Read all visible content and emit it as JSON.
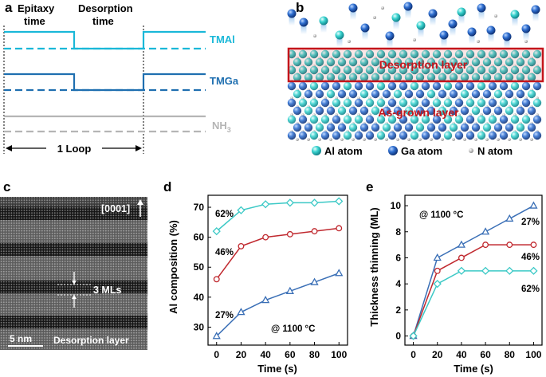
{
  "panel_letters": {
    "a": "a",
    "b": "b",
    "c": "c",
    "d": "d",
    "e": "e"
  },
  "colors": {
    "tmal": "#1ab8d8",
    "tmga": "#1f6fb0",
    "nh3": "#b5b5b5",
    "cyan": "#3cc9c6",
    "red": "#c0282e",
    "blue": "#3a6fb6",
    "highlight": "#c4161c"
  },
  "panel_a": {
    "epitaxy_line1": "Epitaxy",
    "epitaxy_line2": "time",
    "desorption_line1": "Desorption",
    "desorption_line2": "time",
    "tmal": "TMAl",
    "tmga": "TMGa",
    "nh3_main": "NH",
    "nh3_sub": "3",
    "loop": "1 Loop"
  },
  "panel_b": {
    "desorption_layer": "Desorption layer",
    "as_grown_layer": "As-grown layer",
    "legend": [
      {
        "label": "Al atom",
        "icon": "cyan-sphere-icon"
      },
      {
        "label": "Ga atom",
        "icon": "blue-sphere-icon"
      },
      {
        "label": "N atom",
        "icon": "gray-dot-icon"
      }
    ]
  },
  "panel_c": {
    "direction": "[0001]",
    "ml": "3 MLs",
    "scale": "5 nm",
    "layer": "Desorption layer"
  },
  "chart_data": [
    {
      "panel": "d",
      "type": "line",
      "xlabel": "Time (s)",
      "ylabel": "Al composition (%)",
      "x": [
        0,
        20,
        40,
        60,
        80,
        100
      ],
      "xlim": [
        -7,
        107
      ],
      "ylim": [
        24,
        74
      ],
      "xticks": [
        0,
        20,
        40,
        60,
        80,
        100
      ],
      "yticks": [
        30,
        40,
        50,
        60,
        70
      ],
      "annotation": "@ 1100 °C",
      "series": [
        {
          "name": "62%",
          "marker": "diamond",
          "color": "#3cc9c6",
          "values": [
            62,
            69,
            71,
            71.5,
            71.5,
            72
          ]
        },
        {
          "name": "46%",
          "marker": "circle",
          "color": "#c0282e",
          "values": [
            46,
            57,
            60,
            61,
            62,
            63
          ]
        },
        {
          "name": "27%",
          "marker": "triangle",
          "color": "#3a6fb6",
          "values": [
            27,
            35,
            39,
            42,
            45,
            48
          ]
        }
      ]
    },
    {
      "panel": "e",
      "type": "line",
      "xlabel": "Time (s)",
      "ylabel": "Thickness thinning (ML)",
      "x": [
        0,
        20,
        40,
        60,
        80,
        100
      ],
      "xlim": [
        -7,
        107
      ],
      "ylim": [
        -0.7,
        10.8
      ],
      "xticks": [
        0,
        20,
        40,
        60,
        80,
        100
      ],
      "yticks": [
        0,
        2,
        4,
        6,
        8,
        10
      ],
      "annotation": "@ 1100 °C",
      "series": [
        {
          "name": "27%",
          "marker": "triangle",
          "color": "#3a6fb6",
          "values": [
            0,
            6,
            7,
            8,
            9,
            10
          ]
        },
        {
          "name": "46%",
          "marker": "circle",
          "color": "#c0282e",
          "values": [
            0,
            5,
            6,
            7,
            7,
            7
          ]
        },
        {
          "name": "62%",
          "marker": "diamond",
          "color": "#3cc9c6",
          "values": [
            0,
            4,
            5,
            5,
            5,
            5
          ]
        }
      ]
    }
  ]
}
